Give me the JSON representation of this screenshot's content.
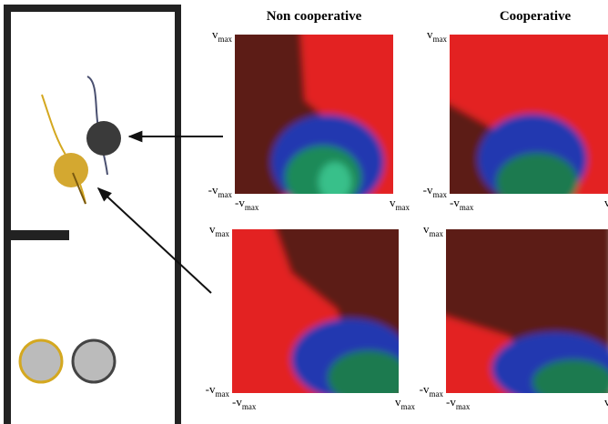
{
  "columns": [
    "Non cooperative",
    "Cooperative"
  ],
  "axis_label": {
    "pos": "v",
    "neg": "-v",
    "sub": "max"
  }
}
